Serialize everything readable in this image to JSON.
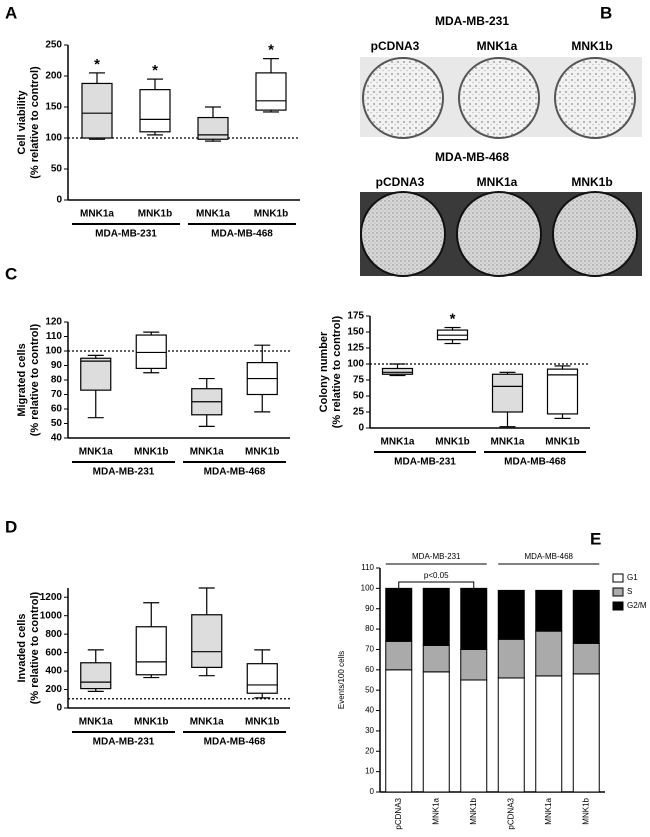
{
  "chart_data": [
    {
      "type": "box",
      "panel": "A",
      "y_label": [
        "Cell viability",
        "(% relative to control)"
      ],
      "categories": [
        "MNK1a",
        "MNK1b",
        "MNK1a",
        "MNK1b"
      ],
      "groups": [
        "MDA-MB-231",
        "MDA-MB-468"
      ],
      "boxes": [
        {
          "min": 98,
          "q1": 100,
          "median": 140,
          "q3": 188,
          "max": 205
        },
        {
          "min": 105,
          "q1": 110,
          "median": 130,
          "q3": 178,
          "max": 195
        },
        {
          "min": 95,
          "q1": 98,
          "median": 105,
          "q3": 133,
          "max": 150
        },
        {
          "min": 142,
          "q1": 145,
          "median": 160,
          "q3": 205,
          "max": 228
        }
      ],
      "box_colors": [
        "#dddddd",
        "#ffffff",
        "#dddddd",
        "#ffffff"
      ],
      "significance": [
        "*",
        "*",
        null,
        "*"
      ],
      "reference_line": 100,
      "ylim": [
        0,
        250
      ],
      "yticks": [
        0,
        50,
        100,
        150,
        200,
        250
      ]
    },
    {
      "type": "box",
      "panel": "C",
      "y_label": [
        "Migrated cells",
        "(% relative to control)"
      ],
      "categories": [
        "MNK1a",
        "MNK1b",
        "MNK1a",
        "MNK1b"
      ],
      "groups": [
        "MDA-MB-231",
        "MDA-MB-468"
      ],
      "boxes": [
        {
          "min": 54,
          "q1": 73,
          "median": 93,
          "q3": 95,
          "max": 97
        },
        {
          "min": 85,
          "q1": 88,
          "median": 99,
          "q3": 111,
          "max": 113
        },
        {
          "min": 48,
          "q1": 56,
          "median": 65,
          "q3": 74,
          "max": 81
        },
        {
          "min": 58,
          "q1": 70,
          "median": 81,
          "q3": 92,
          "max": 104
        }
      ],
      "box_colors": [
        "#dddddd",
        "#ffffff",
        "#dddddd",
        "#ffffff"
      ],
      "reference_line": 100,
      "ylim": [
        40,
        120
      ],
      "yticks": [
        40,
        50,
        60,
        70,
        80,
        90,
        100,
        110,
        120
      ]
    },
    {
      "type": "box",
      "panel": "D",
      "y_label": [
        "Invaded cells",
        "(% relative to control)"
      ],
      "categories": [
        "MNK1a",
        "MNK1b",
        "MNK1a",
        "MNK1b"
      ],
      "groups": [
        "MDA-MB-231",
        "MDA-MB-468"
      ],
      "boxes": [
        {
          "min": 180,
          "q1": 210,
          "median": 280,
          "q3": 490,
          "max": 630
        },
        {
          "min": 330,
          "q1": 360,
          "median": 500,
          "q3": 880,
          "max": 1140
        },
        {
          "min": 350,
          "q1": 440,
          "median": 610,
          "q3": 1010,
          "max": 1300
        },
        {
          "min": 110,
          "q1": 160,
          "median": 250,
          "q3": 480,
          "max": 630
        }
      ],
      "box_colors": [
        "#dddddd",
        "#ffffff",
        "#dddddd",
        "#ffffff"
      ],
      "reference_line": 100,
      "ylim": [
        0,
        1300
      ],
      "yticks": [
        0,
        200,
        400,
        600,
        800,
        1000,
        1200
      ]
    },
    {
      "type": "box",
      "y_label": [
        "Colony number",
        "(% relative to control)"
      ],
      "categories": [
        "MNK1a",
        "MNK1b",
        "MNK1a",
        "MNK1b"
      ],
      "groups": [
        "MDA-MB-231",
        "MDA-MB-468"
      ],
      "boxes": [
        {
          "min": 82,
          "q1": 84,
          "median": 87,
          "q3": 93,
          "max": 100
        },
        {
          "min": 132,
          "q1": 138,
          "median": 145,
          "q3": 153,
          "max": 157
        },
        {
          "min": 2,
          "q1": 25,
          "median": 65,
          "q3": 84,
          "max": 87
        },
        {
          "min": 15,
          "q1": 22,
          "median": 83,
          "q3": 92,
          "max": 97
        }
      ],
      "box_colors": [
        "#dddddd",
        "#ffffff",
        "#dddddd",
        "#ffffff"
      ],
      "significance": [
        null,
        "*",
        null,
        null
      ],
      "reference_line": 100,
      "ylim": [
        0,
        175
      ],
      "yticks": [
        0,
        25,
        50,
        75,
        100,
        125,
        150,
        175
      ]
    },
    {
      "type": "stacked_bar",
      "panel": "E",
      "y_label": [
        "Events/100 cells"
      ],
      "categories": [
        "pCDNA3",
        "MNK1a",
        "MNK1b",
        "pCDNA3",
        "MNK1a",
        "MNK1b"
      ],
      "groups": [
        "MDA-MB-231",
        "MDA-MB-468"
      ],
      "annotation": "p<0.05",
      "series": [
        {
          "name": "G1",
          "color": "#ffffff",
          "values": [
            60,
            59,
            55,
            56,
            57,
            58
          ]
        },
        {
          "name": "S",
          "color": "#aaaaaa",
          "values": [
            14,
            13,
            15,
            19,
            22,
            15
          ]
        },
        {
          "name": "G2/M",
          "color": "#000000",
          "values": [
            26,
            28,
            30,
            24,
            20,
            26
          ]
        }
      ],
      "ylim": [
        0,
        110
      ],
      "yticks": [
        0,
        10,
        20,
        30,
        40,
        50,
        60,
        70,
        80,
        90,
        100,
        110
      ]
    }
  ],
  "photo_panel": {
    "panel": "B",
    "rows": [
      {
        "title": "MDA-MB-231",
        "labels": [
          "pCDNA3",
          "MNK1a",
          "MNK1b"
        ]
      },
      {
        "title": "MDA-MB-468",
        "labels": [
          "pCDNA3",
          "MNK1a",
          "MNK1b"
        ]
      }
    ]
  }
}
